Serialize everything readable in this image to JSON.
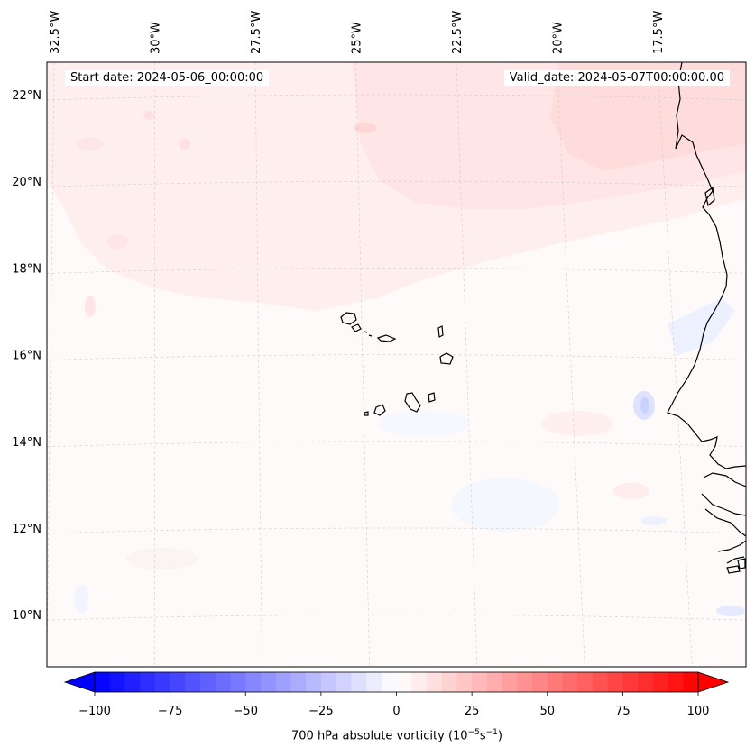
{
  "map": {
    "title_left": "Start date: 2024-05-06_00:00:00",
    "title_right": "Valid_date: 2024-05-07T00:00:00.00",
    "projection": "lambert-conformal",
    "variable": "700 hPa absolute vorticity",
    "extent": {
      "lon_min": -32.6,
      "lon_max": -15.5,
      "lat_min": 8.9,
      "lat_max": 22.8
    },
    "lon_ticks": [
      {
        "value": -32.5,
        "label": "32.5°W"
      },
      {
        "value": -30.0,
        "label": "30°W"
      },
      {
        "value": -27.5,
        "label": "27.5°W"
      },
      {
        "value": -25.0,
        "label": "25°W"
      },
      {
        "value": -22.5,
        "label": "22.5°W"
      },
      {
        "value": -20.0,
        "label": "20°W"
      },
      {
        "value": -17.5,
        "label": "17.5°W"
      }
    ],
    "lat_ticks": [
      {
        "value": 22,
        "label": "22°N"
      },
      {
        "value": 20,
        "label": "20°N"
      },
      {
        "value": 18,
        "label": "18°N"
      },
      {
        "value": 16,
        "label": "16°N"
      },
      {
        "value": 14,
        "label": "14°N"
      },
      {
        "value": 12,
        "label": "12°N"
      },
      {
        "value": 10,
        "label": "10°N"
      }
    ],
    "features": [
      "Cape Verde islands",
      "West African coastline"
    ]
  },
  "colorbar": {
    "label_main": "700 hPa absolute vorticity (10",
    "label_exp1": "−5",
    "label_mid": "s",
    "label_exp2": "−1",
    "label_end": ")",
    "vmin": -100,
    "vmax": 100,
    "levels": 41,
    "ticks": [
      {
        "value": -100,
        "label": "−100"
      },
      {
        "value": -75,
        "label": "−75"
      },
      {
        "value": -50,
        "label": "−50"
      },
      {
        "value": -25,
        "label": "−25"
      },
      {
        "value": 0,
        "label": "0"
      },
      {
        "value": 25,
        "label": "25"
      },
      {
        "value": 50,
        "label": "50"
      },
      {
        "value": 75,
        "label": "75"
      },
      {
        "value": 100,
        "label": "100"
      }
    ],
    "colors": {
      "negative": "#0000ff",
      "zero": "#ffffff",
      "positive": "#ff0000"
    }
  }
}
